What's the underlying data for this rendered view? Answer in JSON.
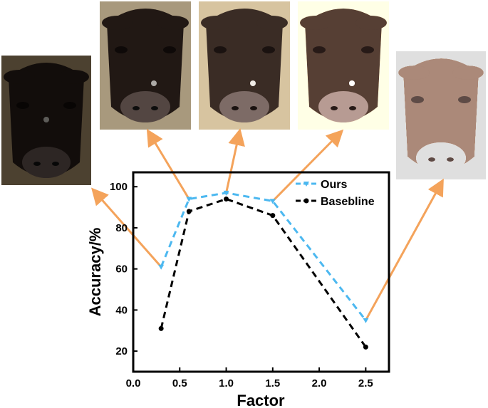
{
  "chart_data": {
    "type": "line",
    "xlabel": "Factor",
    "ylabel": "Accuracy/%",
    "xlim": [
      0.0,
      2.75
    ],
    "ylim": [
      10,
      107
    ],
    "xticks": [
      "0.0",
      "0.5",
      "1.0",
      "1.5",
      "2.0",
      "2.5"
    ],
    "yticks": [
      "20",
      "40",
      "60",
      "80",
      "100"
    ],
    "legend_position": "top-right",
    "grid": false,
    "series": [
      {
        "name": "Ours",
        "color": "#4cb8f0",
        "marker": "triangle",
        "line_style": "dashed",
        "x": [
          0.3,
          0.6,
          1.0,
          1.5,
          2.5
        ],
        "y": [
          61,
          94,
          97,
          93,
          35
        ]
      },
      {
        "name": "Basebline",
        "color": "#000000",
        "marker": "circle",
        "line_style": "dashed",
        "x": [
          0.3,
          0.6,
          1.0,
          1.5,
          2.5
        ],
        "y": [
          31,
          88,
          94,
          86,
          22
        ]
      }
    ]
  },
  "photos": [
    {
      "factor": 0.3,
      "description": "dark cow face"
    },
    {
      "factor": 0.6,
      "description": "slightly dark cow face"
    },
    {
      "factor": 1.0,
      "description": "original cow face"
    },
    {
      "factor": 1.5,
      "description": "bright cow face"
    },
    {
      "factor": 2.5,
      "description": "overexposed cow face"
    }
  ],
  "colors": {
    "arrow": "#f4a35b",
    "axis": "#000000"
  }
}
